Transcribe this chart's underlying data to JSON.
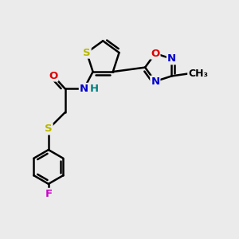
{
  "bg_color": "#ebebeb",
  "bond_color": "#000000",
  "bond_width": 1.8,
  "dbo": 0.12,
  "atom_colors": {
    "S": "#b8b800",
    "N": "#0000cc",
    "O": "#dd0000",
    "F": "#cc00cc",
    "H": "#008080",
    "C": "#000000"
  },
  "font_size": 9.5
}
